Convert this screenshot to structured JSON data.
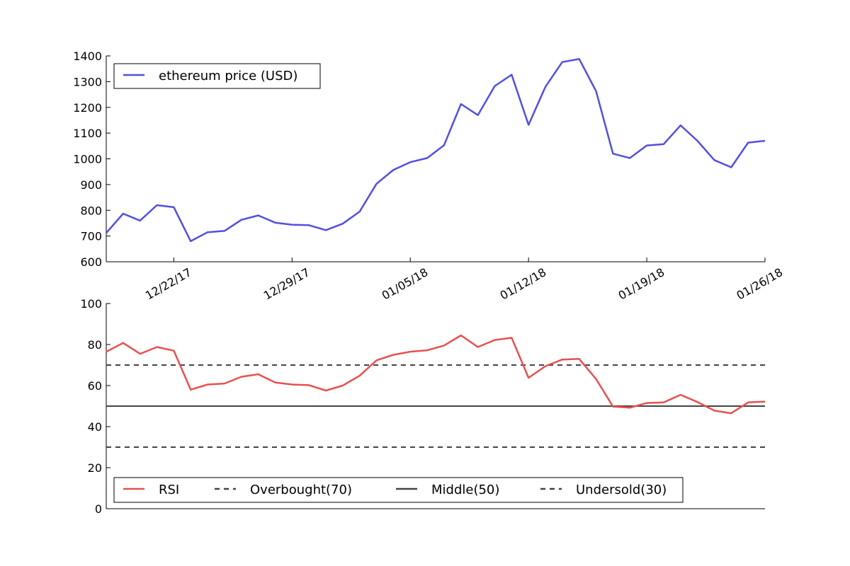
{
  "colors": {
    "price_line": "#5050e0",
    "rsi_line": "#e85050",
    "ref_line": "#444444",
    "axis": "#000000",
    "background": "#ffffff"
  },
  "chart_data": [
    {
      "type": "line",
      "title": "",
      "xlabel": "",
      "ylabel": "",
      "x": [
        "12/18/17",
        "12/19/17",
        "12/20/17",
        "12/21/17",
        "12/22/17",
        "12/23/17",
        "12/24/17",
        "12/25/17",
        "12/26/17",
        "12/27/17",
        "12/28/17",
        "12/29/17",
        "12/30/17",
        "12/31/17",
        "01/01/18",
        "01/02/18",
        "01/03/18",
        "01/04/18",
        "01/05/18",
        "01/06/18",
        "01/07/18",
        "01/08/18",
        "01/09/18",
        "01/10/18",
        "01/11/18",
        "01/12/18",
        "01/13/18",
        "01/14/18",
        "01/15/18",
        "01/16/18",
        "01/17/18",
        "01/18/18",
        "01/19/18",
        "01/20/18",
        "01/21/18",
        "01/22/18",
        "01/23/18",
        "01/24/18",
        "01/25/18",
        "01/26/18"
      ],
      "x_tick_labels": [
        "12/22/17",
        "12/29/17",
        "01/05/18",
        "01/12/18",
        "01/19/18",
        "01/26/18"
      ],
      "ylim": [
        600,
        1400
      ],
      "y_ticks": [
        "600",
        "700",
        "800",
        "900",
        "1000",
        "1100",
        "1200",
        "1300",
        "1400"
      ],
      "legend_position": "top-left",
      "series": [
        {
          "name": "ethereum price (USD)",
          "values": [
            712,
            787,
            760,
            820,
            812,
            680,
            715,
            720,
            763,
            780,
            752,
            744,
            742,
            723,
            748,
            795,
            903,
            957,
            987,
            1003,
            1053,
            1213,
            1170,
            1283,
            1327,
            1132,
            1280,
            1376,
            1388,
            1263,
            1020,
            1003,
            1052,
            1057,
            1130,
            1070,
            995,
            967,
            1063,
            1070
          ]
        }
      ]
    },
    {
      "type": "line",
      "title": "",
      "xlabel": "",
      "ylabel": "",
      "ylim": [
        0,
        100
      ],
      "y_ticks": [
        "0",
        "20",
        "40",
        "60",
        "80",
        "100"
      ],
      "legend_position": "bottom-left",
      "series": [
        {
          "name": "RSI",
          "values": [
            76.5,
            80.8,
            75.5,
            78.8,
            77,
            58,
            60.5,
            61,
            64.3,
            65.5,
            61.5,
            60.5,
            60.2,
            57.6,
            60,
            64.8,
            72.3,
            75,
            76.5,
            77.2,
            79.5,
            84.5,
            78.8,
            82.2,
            83.3,
            63.8,
            69.5,
            72.7,
            73,
            63.2,
            49.8,
            49.2,
            51.5,
            51.8,
            55.5,
            52,
            47.8,
            46.5,
            51.8,
            52.2
          ]
        }
      ],
      "reference_lines": [
        {
          "name": "Overbought(70)",
          "value": 70,
          "style": "dashed"
        },
        {
          "name": "Middle(50)",
          "value": 50,
          "style": "solid"
        },
        {
          "name": "Undersold(30)",
          "value": 30,
          "style": "dashed"
        }
      ]
    }
  ]
}
